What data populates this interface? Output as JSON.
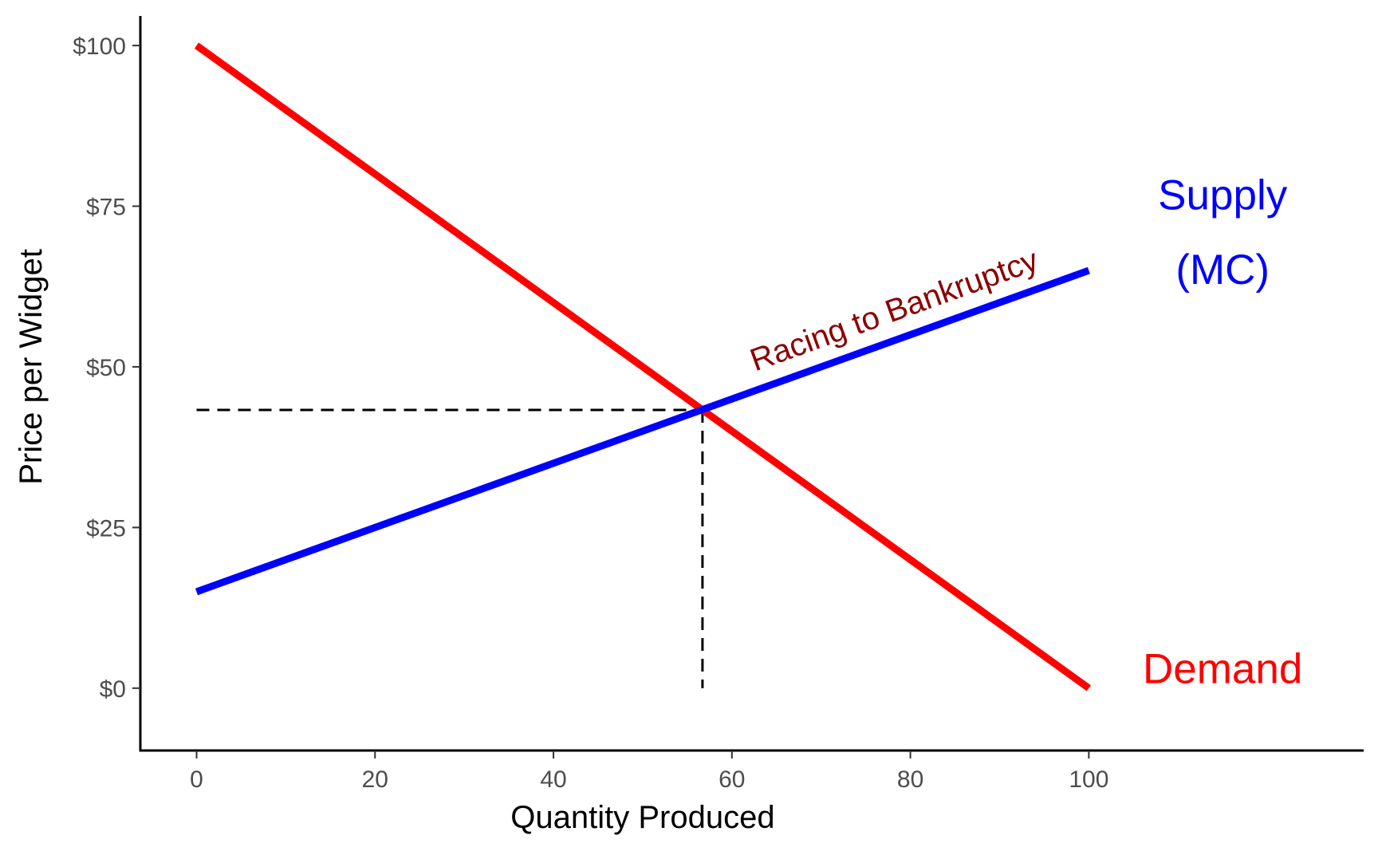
{
  "chart_data": {
    "type": "line",
    "xlabel": "Quantity Produced",
    "ylabel": "Price per Widget",
    "xlim": [
      -6.3,
      130.8
    ],
    "ylim": [
      -9.7,
      104.6
    ],
    "x_ticks": [
      0,
      20,
      40,
      60,
      80,
      100
    ],
    "x_tick_labels": [
      "0",
      "20",
      "40",
      "60",
      "80",
      "100"
    ],
    "y_ticks": [
      0,
      25,
      50,
      75,
      100
    ],
    "y_tick_labels": [
      "$0",
      "$25",
      "$50",
      "$75",
      "$100"
    ],
    "grid": false,
    "series": [
      {
        "name": "Demand",
        "color": "#FF0000",
        "x": [
          0,
          100
        ],
        "y": [
          100,
          0
        ]
      },
      {
        "name": "Supply (MC)",
        "color": "#0000FF",
        "x": [
          0,
          100
        ],
        "y": [
          15,
          65
        ]
      }
    ],
    "equilibrium": {
      "x": 56.7,
      "y": 43.3
    },
    "labels": {
      "supply_line1": "Supply",
      "supply_line2": "(MC)",
      "demand": "Demand",
      "annotation": "Racing to Bankruptcy"
    },
    "colors": {
      "supply": "#0000FF",
      "demand": "#FF0000",
      "annotation": "#8B0000",
      "axis": "#000000",
      "tick_text": "#4d4d4d"
    }
  }
}
